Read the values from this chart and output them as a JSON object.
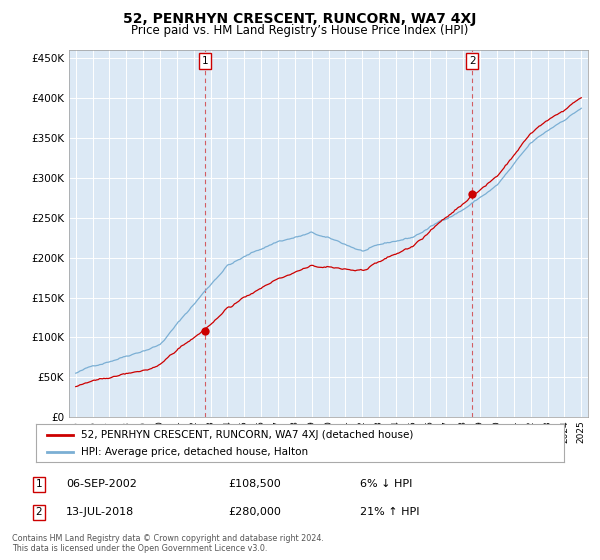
{
  "title": "52, PENRHYN CRESCENT, RUNCORN, WA7 4XJ",
  "subtitle": "Price paid vs. HM Land Registry’s House Price Index (HPI)",
  "plot_bg_color": "#dce9f5",
  "ylim": [
    0,
    460000
  ],
  "yticks": [
    0,
    50000,
    100000,
    150000,
    200000,
    250000,
    300000,
    350000,
    400000,
    450000
  ],
  "ytick_labels": [
    "£0",
    "£50K",
    "£100K",
    "£150K",
    "£200K",
    "£250K",
    "£300K",
    "£350K",
    "£400K",
    "£450K"
  ],
  "red_line_color": "#cc0000",
  "blue_line_color": "#7bafd4",
  "marker_color": "#cc0000",
  "vline_color": "#cc0000",
  "sale1_x": 2002.67,
  "sale1_y": 108500,
  "sale2_x": 2018.53,
  "sale2_y": 280000,
  "xlim_left": 1994.6,
  "xlim_right": 2025.4,
  "legend_entries": [
    "52, PENRHYN CRESCENT, RUNCORN, WA7 4XJ (detached house)",
    "HPI: Average price, detached house, Halton"
  ],
  "table_data": [
    {
      "num": "1",
      "date": "06-SEP-2002",
      "price": "£108,500",
      "change": "6% ↓ HPI"
    },
    {
      "num": "2",
      "date": "13-JUL-2018",
      "price": "£280,000",
      "change": "21% ↑ HPI"
    }
  ],
  "footnote": "Contains HM Land Registry data © Crown copyright and database right 2024.\nThis data is licensed under the Open Government Licence v3.0."
}
